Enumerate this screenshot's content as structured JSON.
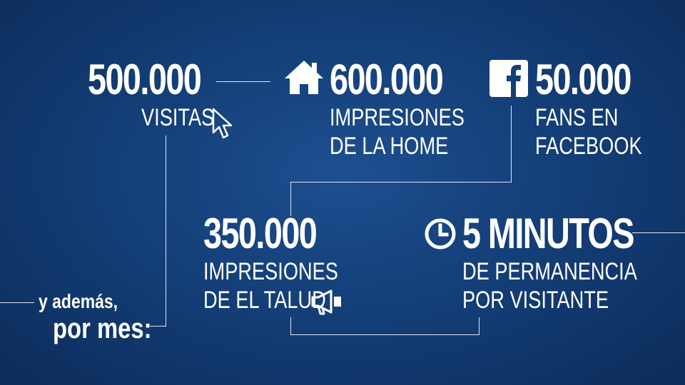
{
  "stats": {
    "visitas": {
      "value": "500.000",
      "label": "VISITAS"
    },
    "home": {
      "value": "600.000",
      "label_line1": "IMPRESIONES",
      "label_line2": "DE LA HOME"
    },
    "facebook": {
      "value": "50.000",
      "label_line1": "FANS EN",
      "label_line2": "FACEBOOK"
    },
    "talud": {
      "value": "350.000",
      "label_line1": "IMPRESIONES",
      "label_line2": "DE EL TALUD"
    },
    "minutos": {
      "value": "5 MINUTOS",
      "label_line1": "DE PERMANENCIA",
      "label_line2": "POR VISITANTE"
    }
  },
  "footer": {
    "line1": "y además,",
    "line2": "por mes:"
  },
  "icons": [
    "cursor-icon",
    "home-icon",
    "facebook-icon",
    "megaphone-icon",
    "clock-icon"
  ],
  "colors": {
    "background": "#143f78",
    "text": "#ffffff",
    "lines": "#dfe7f2"
  }
}
